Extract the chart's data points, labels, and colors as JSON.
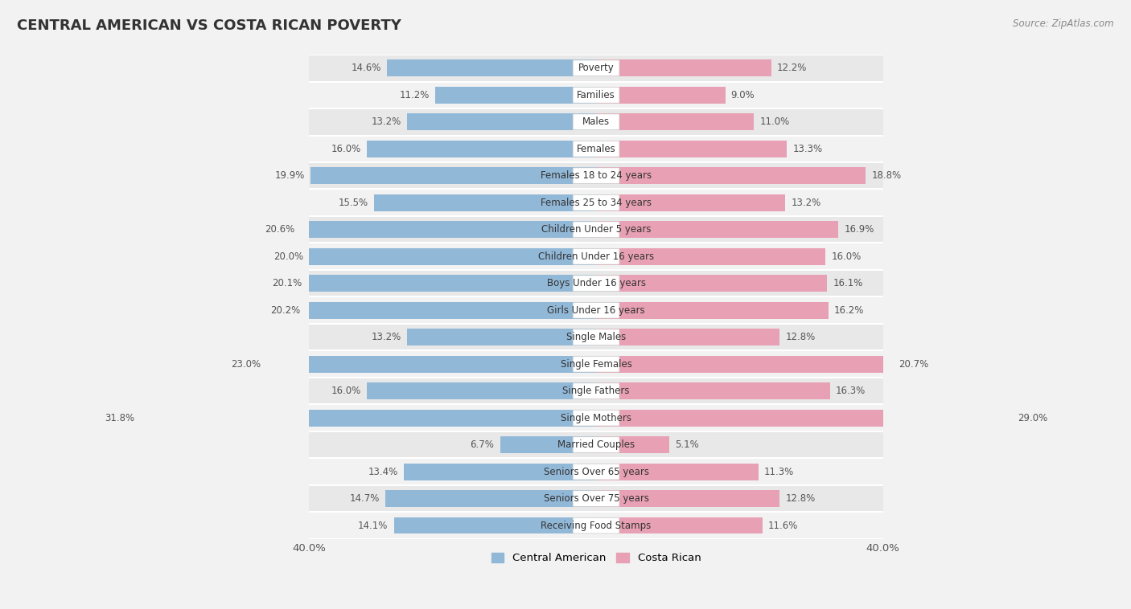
{
  "title": "CENTRAL AMERICAN VS COSTA RICAN POVERTY",
  "source": "Source: ZipAtlas.com",
  "categories": [
    "Poverty",
    "Families",
    "Males",
    "Females",
    "Females 18 to 24 years",
    "Females 25 to 34 years",
    "Children Under 5 years",
    "Children Under 16 years",
    "Boys Under 16 years",
    "Girls Under 16 years",
    "Single Males",
    "Single Females",
    "Single Fathers",
    "Single Mothers",
    "Married Couples",
    "Seniors Over 65 years",
    "Seniors Over 75 years",
    "Receiving Food Stamps"
  ],
  "central_american": [
    14.6,
    11.2,
    13.2,
    16.0,
    19.9,
    15.5,
    20.6,
    20.0,
    20.1,
    20.2,
    13.2,
    23.0,
    16.0,
    31.8,
    6.7,
    13.4,
    14.7,
    14.1
  ],
  "costa_rican": [
    12.2,
    9.0,
    11.0,
    13.3,
    18.8,
    13.2,
    16.9,
    16.0,
    16.1,
    16.2,
    12.8,
    20.7,
    16.3,
    29.0,
    5.1,
    11.3,
    12.8,
    11.6
  ],
  "central_american_color": "#92b8d8",
  "costa_rican_color": "#e8a0b4",
  "bar_height": 0.62,
  "xlim": [
    0,
    40
  ],
  "bg_color": "#f2f2f2",
  "row_color_odd": "#e8e8e8",
  "row_color_even": "#f2f2f2",
  "title_fontsize": 13,
  "label_fontsize": 8.5,
  "value_fontsize": 8.5,
  "legend_fontsize": 9.5,
  "source_fontsize": 8.5
}
